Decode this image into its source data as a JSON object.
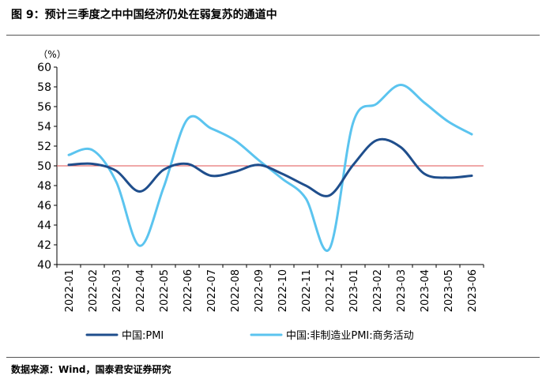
{
  "figure": {
    "title": "图 9：预计三季度之中中国经济仍处在弱复苏的通道中",
    "source": "数据来源：Wind，国泰君安证券研究"
  },
  "chart_data": {
    "type": "line",
    "unit_label": "（%）",
    "categories": [
      "2022-01",
      "2022-02",
      "2022-03",
      "2022-04",
      "2022-05",
      "2022-06",
      "2022-07",
      "2022-08",
      "2022-09",
      "2022-10",
      "2022-11",
      "2022-12",
      "2023-01",
      "2023-02",
      "2023-03",
      "2023-04",
      "2023-05",
      "2023-06"
    ],
    "ylim": [
      40,
      60
    ],
    "yticks": [
      40,
      42,
      44,
      46,
      48,
      50,
      52,
      54,
      56,
      58,
      60
    ],
    "reference_line": {
      "value": 50,
      "color": "#e05050"
    },
    "series": [
      {
        "name": "中国:PMI",
        "color": "#1f4e8c",
        "values": [
          50.1,
          50.2,
          49.5,
          47.4,
          49.6,
          50.2,
          49.0,
          49.4,
          50.1,
          49.2,
          48.0,
          47.0,
          50.1,
          52.6,
          51.9,
          49.2,
          48.8,
          49.0
        ]
      },
      {
        "name": "中国:非制造业PMI:商务活动",
        "color": "#5bc4ef",
        "values": [
          51.1,
          51.6,
          48.4,
          41.9,
          47.8,
          54.7,
          53.8,
          52.6,
          50.6,
          48.7,
          46.7,
          41.6,
          54.4,
          56.3,
          58.2,
          56.4,
          54.5,
          53.2
        ]
      }
    ],
    "legend_position": "bottom",
    "grid": false
  }
}
